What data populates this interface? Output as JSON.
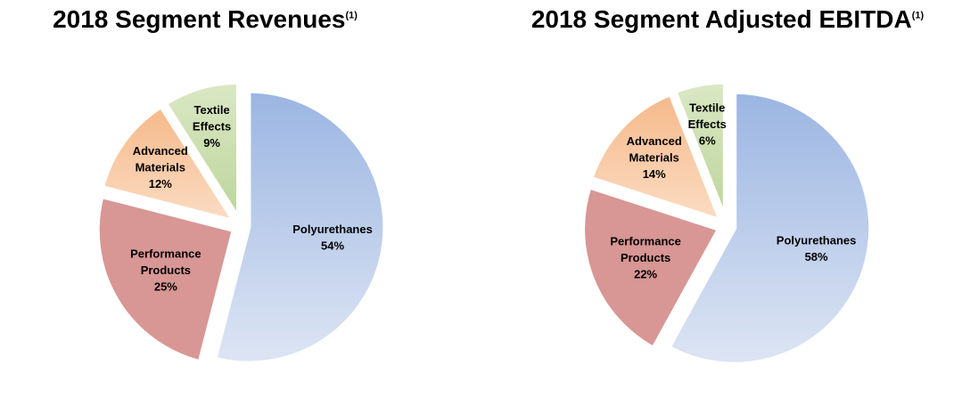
{
  "chart_data": [
    {
      "type": "pie",
      "title": "2018 Segment Revenues",
      "title_note": "(1)",
      "slices": [
        {
          "label": "Polyurethanes",
          "display_label": [
            "Polyurethanes",
            "54%"
          ],
          "value": 54,
          "color_top": "#9bb5e2",
          "color_bottom": "#dde5f4"
        },
        {
          "label": "Performance Products",
          "display_label": [
            "Performance",
            "Products",
            "25%"
          ],
          "value": 25,
          "color_top": "#d89694",
          "color_bottom": "#d89694"
        },
        {
          "label": "Advanced Materials",
          "display_label": [
            "Advanced",
            "Materials",
            "12%"
          ],
          "value": 12,
          "color_top": "#f5b98a",
          "color_bottom": "#fbdcc3"
        },
        {
          "label": "Textile Effects",
          "display_label": [
            "Textile",
            "Effects",
            "9%"
          ],
          "value": 9,
          "color_top": "#dae8c5",
          "color_bottom": "#bdd59a"
        }
      ]
    },
    {
      "type": "pie",
      "title": "2018 Segment Adjusted EBITDA",
      "title_note": "(1)",
      "slices": [
        {
          "label": "Polyurethanes",
          "display_label": [
            "Polyurethanes",
            "58%"
          ],
          "value": 58,
          "color_top": "#9bb5e2",
          "color_bottom": "#dde5f4"
        },
        {
          "label": "Performance Products",
          "display_label": [
            "Performance",
            "Products",
            "22%"
          ],
          "value": 22,
          "color_top": "#d89694",
          "color_bottom": "#d89694"
        },
        {
          "label": "Advanced Materials",
          "display_label": [
            "Advanced",
            "Materials",
            "14%"
          ],
          "value": 14,
          "color_top": "#f5b98a",
          "color_bottom": "#fbdcc3"
        },
        {
          "label": "Textile Effects",
          "display_label": [
            "Textile",
            "Effects",
            "6%"
          ],
          "value": 6,
          "color_top": "#dae8c5",
          "color_bottom": "#bdd59a"
        }
      ]
    }
  ]
}
